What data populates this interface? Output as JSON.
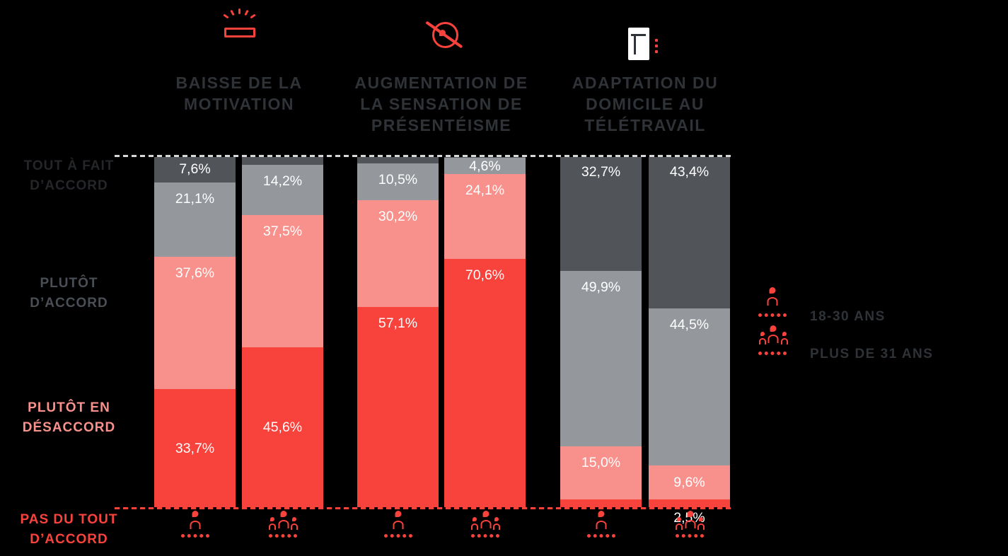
{
  "accent_color": "#f8423c",
  "background_color": "#000000",
  "columns": [
    {
      "icon": "battery-low-icon",
      "title": "BAISSE DE LA MOTIVATION",
      "title_lines": [
        "BAISSE DE LA",
        "MOTIVATION"
      ]
    },
    {
      "icon": "eye-off-icon",
      "title": "AUGMENTATION DE LA SENSATION DE PRÉSENTÉISME",
      "title_lines": [
        "AUGMENTATION DE",
        "LA SENSATION DE",
        "PRÉSENTÉISME"
      ]
    },
    {
      "icon": "desk-icon",
      "title": "ADAPTATION DU DOMICILE AU TÉLÉTRAVAIL",
      "title_lines": [
        "ADAPTATION DU",
        "DOMICILE AU",
        "TÉLÉTRAVAIL"
      ]
    }
  ],
  "y_axis_labels": [
    {
      "lines": [
        "TOUT À FAIT",
        "D’ACCORD"
      ],
      "color": "#24262a"
    },
    {
      "lines": [
        "PLUTÔT",
        "D’ACCORD"
      ],
      "color": "#4a4e55"
    },
    {
      "lines": [
        "PLUTÔT EN",
        "DÉSACCORD"
      ],
      "color": "#f8918c"
    },
    {
      "lines": [
        "PAS DU TOUT",
        "D’ACCORD"
      ],
      "color": "#f8423c"
    }
  ],
  "legend": [
    {
      "icon": "person-single-icon",
      "label": "18-30 ANS"
    },
    {
      "icon": "person-group-icon",
      "label": "PLUS DE 31 ANS"
    }
  ],
  "chart_data": {
    "type": "bar",
    "stacked": true,
    "orientation": "vertical",
    "value_unit": "%",
    "ylim": [
      0,
      100
    ],
    "grid": "dashed top and bottom lines only",
    "legend_position": "right",
    "categories": [
      "BAISSE DE LA MOTIVATION",
      "AUGMENTATION DE LA SENSATION DE PRÉSENTÉISME",
      "ADAPTATION DU DOMICILE AU TÉLÉTRAVAIL"
    ],
    "groups": [
      "18-30 ANS",
      "PLUS DE 31 ANS"
    ],
    "bar_order": [
      "motivation-18-30-ans",
      "motivation-plus-de-31-ans",
      "presenteisme-18-30-ans",
      "presenteisme-plus-de-31-ans",
      "domicile-18-30-ans",
      "domicile-plus-de-31-ans"
    ],
    "series": [
      {
        "name": "TOUT À FAIT D’ACCORD",
        "color": "#515459",
        "values": [
          7.6,
          2.7,
          2.2,
          0.7,
          32.7,
          43.4
        ],
        "labels": [
          "7,6%",
          "",
          "",
          "",
          "32,7%",
          "43,4%"
        ]
      },
      {
        "name": "PLUTÔT D’ACCORD",
        "color": "#94979c",
        "values": [
          21.1,
          14.2,
          10.5,
          4.6,
          49.9,
          44.5
        ],
        "labels": [
          "21,1%",
          "14,2%",
          "10,5%",
          "4,6%",
          "49,9%",
          "44,5%"
        ]
      },
      {
        "name": "PLUTÔT EN DÉSACCORD",
        "color": "#f8918c",
        "values": [
          37.6,
          37.5,
          30.2,
          24.1,
          15.0,
          9.6
        ],
        "labels": [
          "37,6%",
          "37,5%",
          "30,2%",
          "24,1%",
          "15,0%",
          "9,6%"
        ]
      },
      {
        "name": "PAS DU TOUT D’ACCORD",
        "color": "#f8423c",
        "values": [
          33.7,
          45.6,
          57.1,
          70.6,
          2.4,
          2.5
        ],
        "labels": [
          "33,7%",
          "45,6%",
          "57,1%",
          "70,6%",
          "",
          "2,5%"
        ]
      }
    ]
  }
}
